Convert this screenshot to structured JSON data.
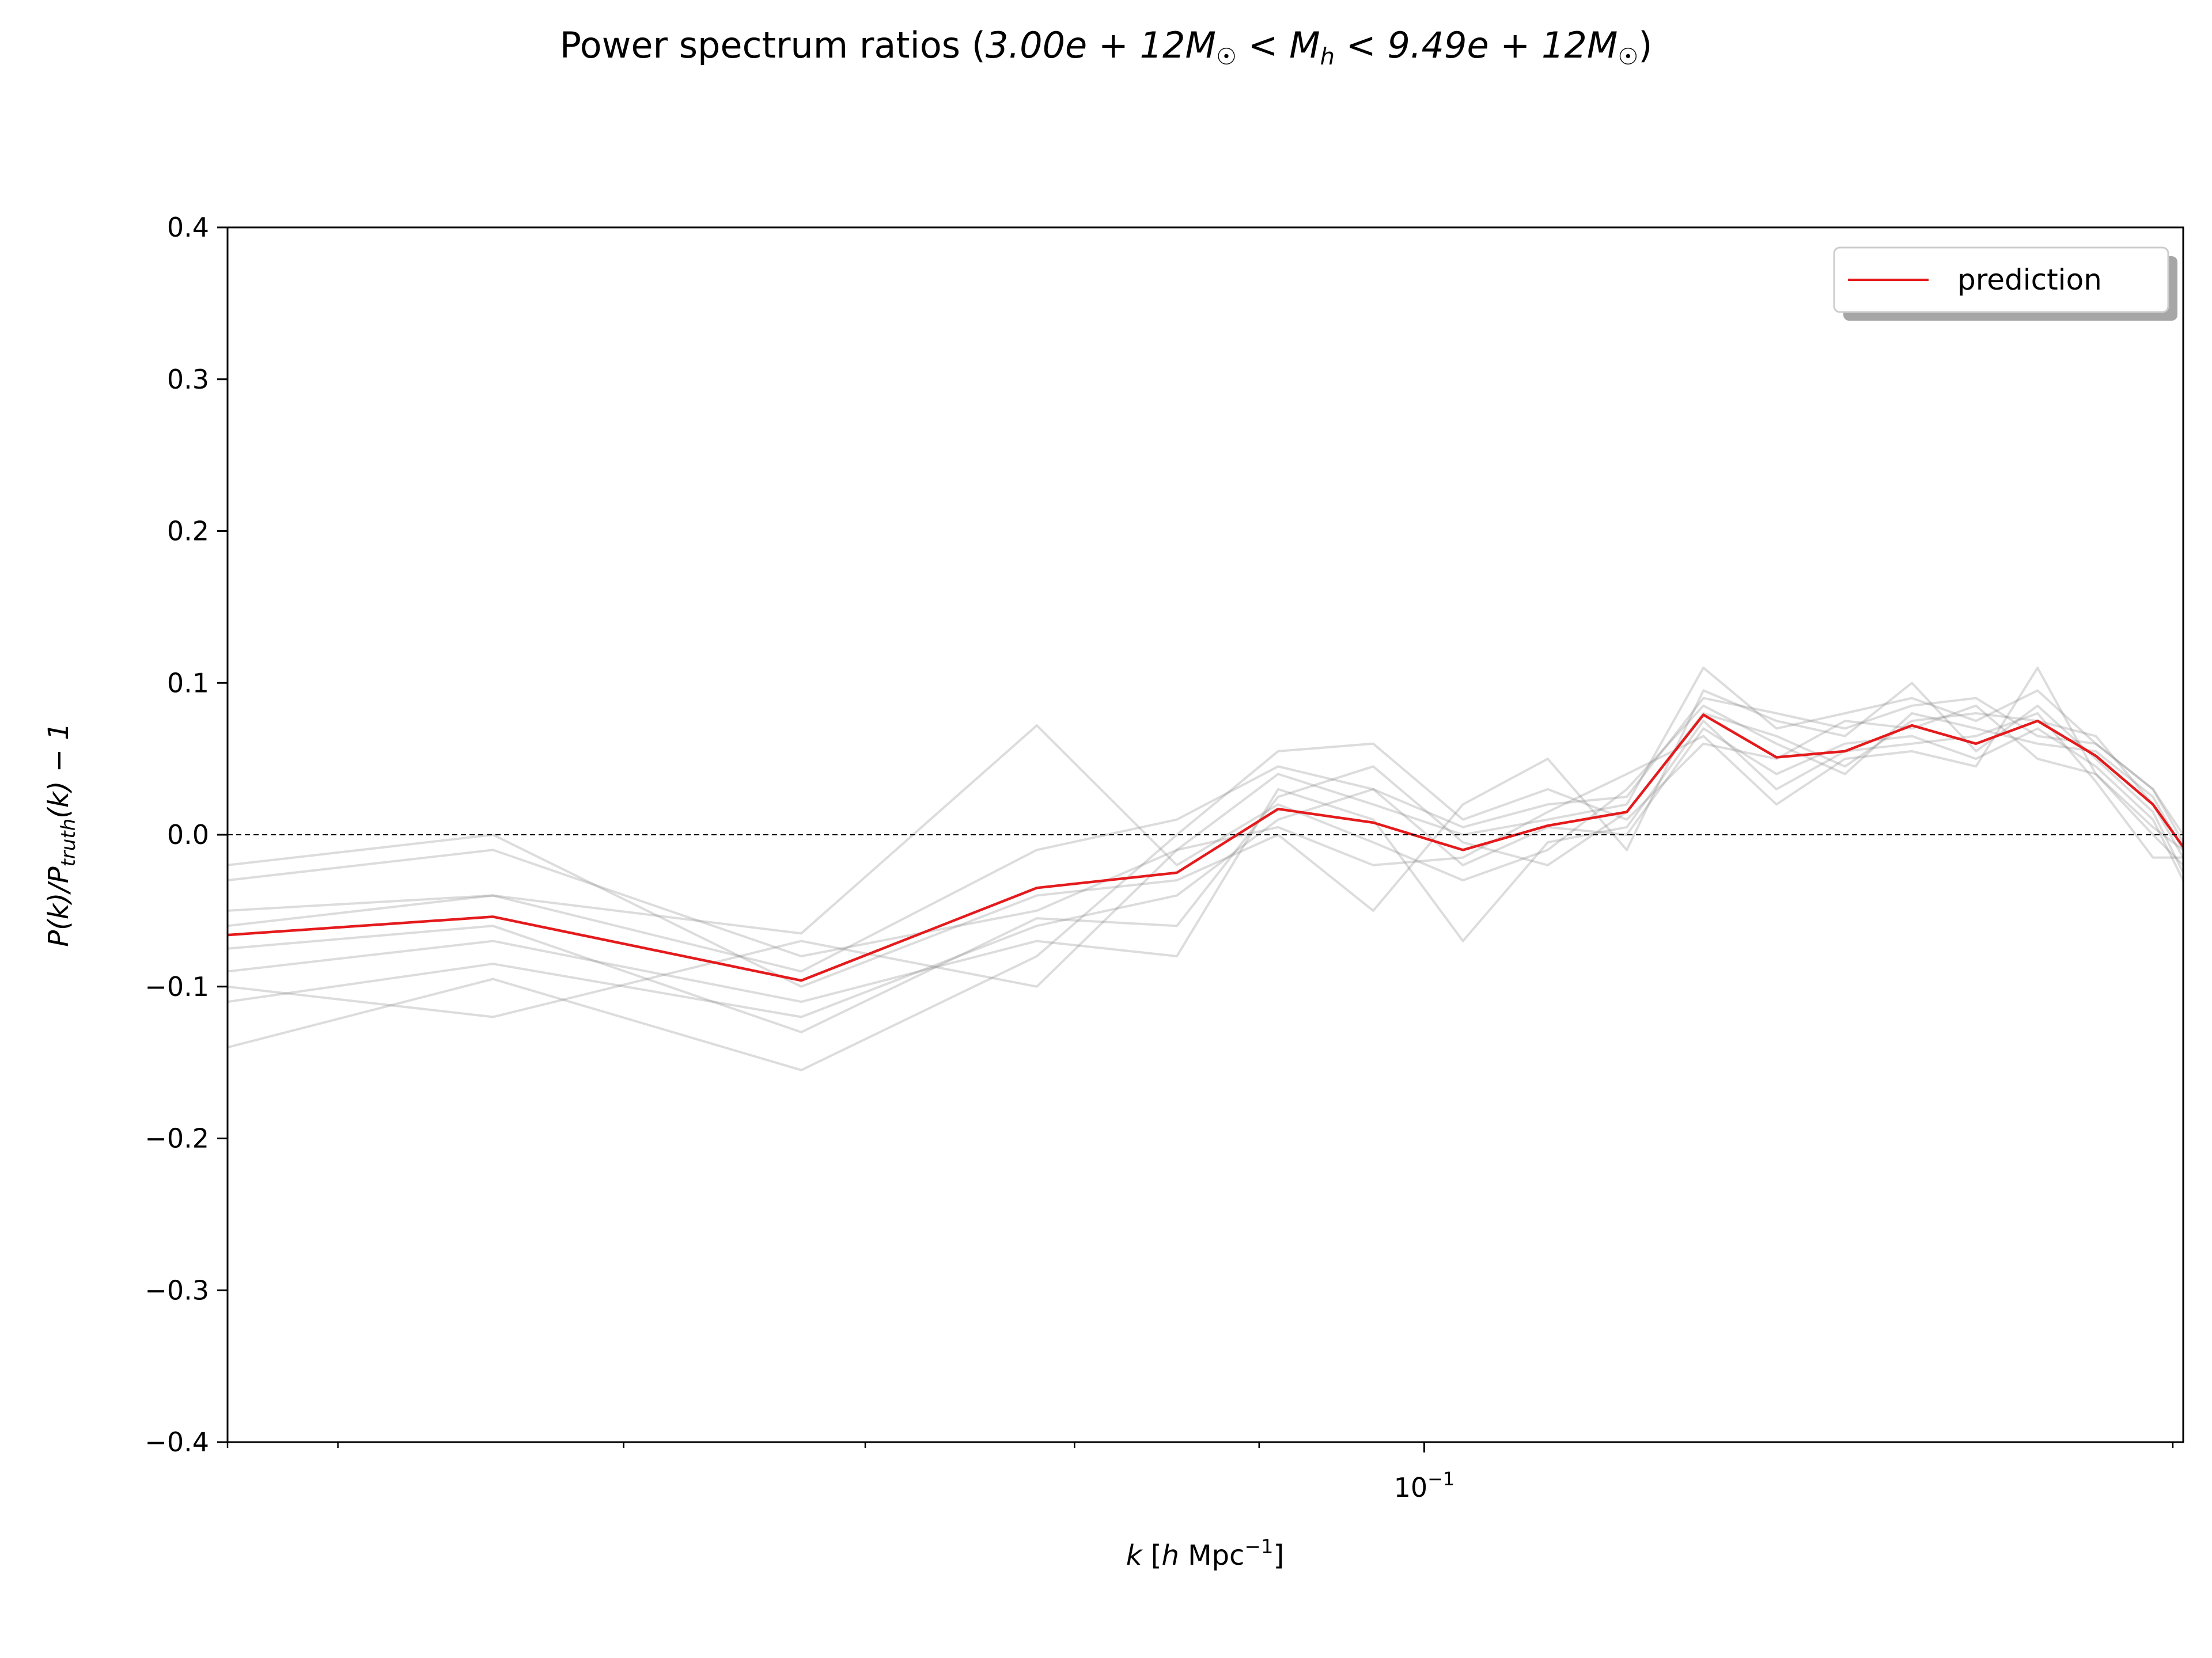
{
  "title": "Power spectrum ratios (3.00e + 12M☉ < Mₕ < 9.49e + 12M☉)",
  "title_parts": {
    "prefix": "Power spectrum ratios (",
    "low": "3.00e + 12",
    "high": "9.49e + 12",
    "mass": "M",
    "sun": "☉",
    "lt": " < ",
    "h_sub": "h",
    "close": ")"
  },
  "xlabel": {
    "k": "k",
    "open": " [",
    "h": "h",
    "unit": " Mpc",
    "exp": "−1",
    "close": "]"
  },
  "ylabel": {
    "a": "P(k)/P",
    "sub": "truth",
    "b": "(k) − 1"
  },
  "colors": {
    "prediction": "#e41a1c",
    "truth_samples": "#808080",
    "zero_line": "#000000"
  },
  "chart_data": {
    "type": "line",
    "title": "Power spectrum ratios (3.00e + 12M☉ < Mₕ < 9.49e + 12M☉)",
    "xlabel": "k [h Mpc⁻¹]",
    "ylabel": "P(k)/P_truth(k) − 1",
    "xscale": "log",
    "xlim": [
      0.0466,
      0.1623
    ],
    "ylim": [
      -0.4,
      0.4
    ],
    "yticks": [
      -0.4,
      -0.3,
      -0.2,
      -0.1,
      0.0,
      0.1,
      0.2,
      0.3,
      0.4
    ],
    "ytick_labels": [
      "−0.4",
      "−0.3",
      "−0.2",
      "−0.1",
      "0.0",
      "0.1",
      "0.2",
      "0.3",
      "0.4"
    ],
    "xticks_major": [
      0.1
    ],
    "xtick_major_labels": [
      {
        "base": "10",
        "exp": "−1"
      }
    ],
    "xticks_minor": [
      0.05,
      0.06,
      0.07,
      0.08,
      0.09,
      0.2
    ],
    "reference_line": {
      "y": 0.0,
      "style": "dashed"
    },
    "legend": {
      "placement": "top-right",
      "entries": [
        "prediction"
      ]
    },
    "x": [
      0.0466,
      0.0552,
      0.0672,
      0.0781,
      0.0854,
      0.0911,
      0.0968,
      0.1025,
      0.1082,
      0.1138,
      0.1195,
      0.1252,
      0.1308,
      0.1365,
      0.1422,
      0.1479,
      0.1535,
      0.1592,
      0.1623
    ],
    "series": [
      {
        "name": "prediction",
        "role": "prediction",
        "values": [
          -0.066,
          -0.054,
          -0.096,
          -0.035,
          -0.025,
          0.017,
          0.008,
          -0.01,
          0.006,
          0.015,
          0.079,
          0.051,
          0.055,
          0.072,
          0.06,
          0.075,
          0.052,
          0.02,
          -0.008
        ]
      },
      {
        "role": "truth_sample",
        "values": [
          -0.03,
          -0.01,
          -0.08,
          -0.05,
          -0.01,
          0.04,
          0.02,
          0.0,
          0.01,
          0.02,
          0.11,
          0.07,
          0.08,
          0.09,
          0.075,
          0.095,
          0.06,
          0.03,
          0.0
        ]
      },
      {
        "role": "truth_sample",
        "values": [
          -0.11,
          -0.085,
          -0.12,
          -0.06,
          -0.04,
          0.01,
          0.03,
          -0.02,
          0.005,
          0.0,
          0.07,
          0.04,
          0.06,
          0.065,
          0.05,
          0.07,
          0.045,
          0.01,
          -0.03
        ]
      },
      {
        "role": "truth_sample",
        "values": [
          -0.05,
          -0.04,
          -0.065,
          0.072,
          -0.02,
          0.02,
          -0.005,
          -0.03,
          -0.01,
          0.03,
          0.085,
          0.06,
          0.04,
          0.08,
          0.07,
          0.06,
          0.055,
          0.025,
          -0.01
        ]
      },
      {
        "role": "truth_sample",
        "values": [
          -0.14,
          -0.095,
          -0.155,
          -0.08,
          0.0,
          0.055,
          0.06,
          0.01,
          0.03,
          0.01,
          0.06,
          0.05,
          0.075,
          0.07,
          0.085,
          0.05,
          0.04,
          0.0,
          -0.02
        ]
      },
      {
        "role": "truth_sample",
        "values": [
          -0.02,
          0.0,
          -0.1,
          -0.04,
          -0.03,
          0.0,
          -0.05,
          0.02,
          0.05,
          -0.01,
          0.095,
          0.075,
          0.065,
          0.1,
          0.055,
          0.085,
          0.05,
          0.015,
          -0.025
        ]
      },
      {
        "role": "truth_sample",
        "values": [
          -0.09,
          -0.07,
          -0.11,
          -0.07,
          -0.08,
          0.03,
          0.01,
          -0.07,
          -0.005,
          0.005,
          0.075,
          0.03,
          0.055,
          0.06,
          0.065,
          0.08,
          0.035,
          -0.015,
          -0.015
        ]
      },
      {
        "role": "truth_sample",
        "values": [
          -0.06,
          -0.04,
          -0.09,
          -0.01,
          0.01,
          0.045,
          0.03,
          0.005,
          0.02,
          0.025,
          0.09,
          0.08,
          0.07,
          0.085,
          0.09,
          0.065,
          0.06,
          0.03,
          -0.005
        ]
      },
      {
        "role": "truth_sample",
        "values": [
          -0.1,
          -0.12,
          -0.07,
          -0.1,
          -0.01,
          0.005,
          -0.02,
          -0.015,
          0.015,
          0.04,
          0.065,
          0.02,
          0.05,
          0.055,
          0.045,
          0.11,
          0.04,
          0.005,
          -0.01
        ]
      },
      {
        "role": "truth_sample",
        "values": [
          -0.075,
          -0.06,
          -0.13,
          -0.055,
          -0.06,
          0.025,
          0.045,
          -0.005,
          -0.02,
          0.015,
          0.08,
          0.065,
          0.045,
          0.075,
          0.08,
          0.075,
          0.065,
          0.02,
          -0.015
        ]
      }
    ]
  }
}
